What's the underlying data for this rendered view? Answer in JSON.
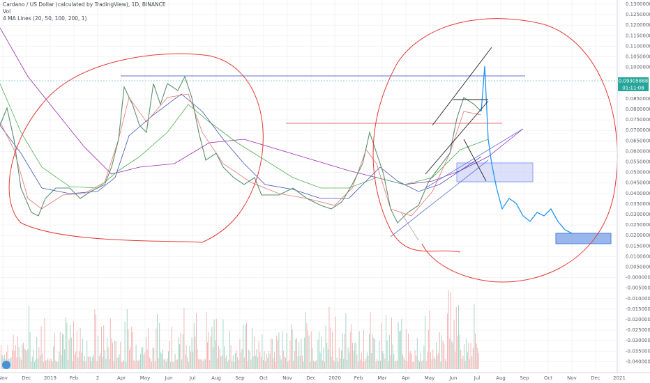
{
  "header": {
    "title": "Cardano / US Dollar (calculated by TradingView), 1D, BINANCE",
    "volume": "Vol",
    "indicator": "4 MA Lines (20, 50, 100, 200, 1)"
  },
  "price_axis": {
    "labels": [
      "0.13000000",
      "0.12500000",
      "0.12000000",
      "0.11500000",
      "0.11000000",
      "0.10500000",
      "0.10000000",
      "0.08500000",
      "0.08000000",
      "0.07500000",
      "0.07000000",
      "0.06500000",
      "0.06000000",
      "0.05500000",
      "0.05000000",
      "0.04500000",
      "0.04000000",
      "0.03500000",
      "0.03000000",
      "0.02500000",
      "0.02000000",
      "0.01500000",
      "0.01000000",
      "0.00500000",
      "-0.00000000",
      "-0.00500000",
      "-0.01000000",
      "-0.01500000",
      "-0.02000000",
      "-0.02500000",
      "-0.03000000",
      "-0.03500000",
      "-0.04000000"
    ],
    "price_tag": "0.09305888",
    "countdown": "01:11:08"
  },
  "time_axis": {
    "labels": [
      "Nov",
      "Dec",
      "2019",
      "Feb",
      "2",
      "Apr",
      "May",
      "Jun",
      "Jul",
      "Aug",
      "Sep",
      "Oct",
      "Nov",
      "Dec",
      "2020",
      "Feb",
      "Mar",
      "Apr",
      "May",
      "Jun",
      "Jul",
      "Aug",
      "Sep",
      "Oct",
      "Nov",
      "Dec",
      "2021"
    ]
  }
}
